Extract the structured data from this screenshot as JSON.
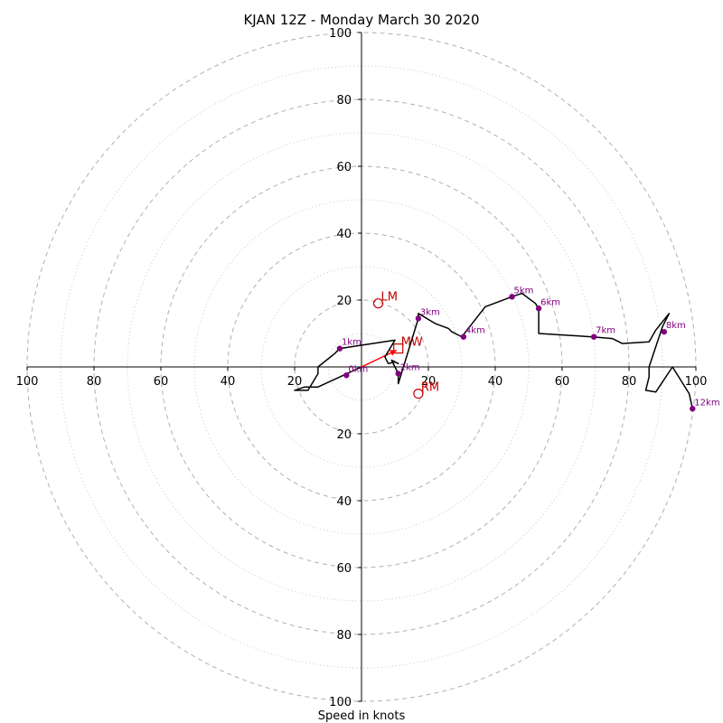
{
  "chart_data": {
    "type": "hodograph",
    "title": "KJAN 12Z - Monday March 30 2020",
    "xlabel": "Speed in knots",
    "range": [
      -100,
      100
    ],
    "major_rings": [
      20,
      40,
      60,
      80,
      100
    ],
    "minor_rings": [
      10,
      30,
      50,
      70,
      90
    ],
    "x_tick_labels": [
      "100",
      "80",
      "60",
      "40",
      "20",
      "20",
      "40",
      "60",
      "80",
      "100"
    ],
    "x_tick_values": [
      -100,
      -80,
      -60,
      -40,
      -20,
      20,
      40,
      60,
      80,
      100
    ],
    "y_tick_labels": [
      "100",
      "80",
      "60",
      "40",
      "20",
      "20",
      "40",
      "60",
      "80",
      "100"
    ],
    "y_tick_values": [
      100,
      80,
      60,
      40,
      20,
      -20,
      -40,
      -60,
      -80,
      -100
    ],
    "colors": {
      "ring": "#b0b0b0",
      "trace": "#000000",
      "height_marker": "#800080",
      "motion": "#c00000",
      "shear_vector": "#ff0000",
      "axis": "#000000"
    },
    "hodograph_trace": [
      [
        0,
        0
      ],
      [
        -13,
        -6
      ],
      [
        -17,
        -6
      ],
      [
        -20,
        -7
      ],
      [
        -16,
        -7
      ],
      [
        -13,
        -2
      ],
      [
        -13,
        0
      ],
      [
        -8,
        4
      ],
      [
        -6.5,
        5.5
      ],
      [
        10,
        8
      ],
      [
        7,
        3
      ],
      [
        8,
        1
      ],
      [
        10,
        1.5
      ],
      [
        11,
        1
      ],
      [
        9,
        2
      ],
      [
        10,
        0
      ],
      [
        11,
        -2
      ],
      [
        11,
        -5
      ],
      [
        17,
        14.5
      ],
      [
        17,
        16
      ],
      [
        22,
        13
      ],
      [
        26,
        11.5
      ],
      [
        27,
        10.5
      ],
      [
        30,
        9
      ],
      [
        37,
        18
      ],
      [
        45,
        21
      ],
      [
        48,
        22
      ],
      [
        52,
        19
      ],
      [
        53,
        17.5
      ],
      [
        53,
        10
      ],
      [
        69,
        9
      ],
      [
        75,
        8.5
      ],
      [
        78,
        7
      ],
      [
        86,
        7.5
      ],
      [
        88,
        11
      ],
      [
        92,
        16
      ],
      [
        90,
        12
      ],
      [
        86,
        0
      ],
      [
        86,
        -3
      ],
      [
        85,
        -7
      ],
      [
        88,
        -7.5
      ],
      [
        93,
        0
      ],
      [
        98,
        -8
      ],
      [
        99,
        -12.5
      ]
    ],
    "height_markers": [
      {
        "label": "0km",
        "u": -4.5,
        "v": -2.5
      },
      {
        "label": "1km",
        "u": -6.5,
        "v": 5.5
      },
      {
        "label": "2km",
        "u": 11,
        "v": -2
      },
      {
        "label": "3km",
        "u": 17,
        "v": 14.5
      },
      {
        "label": "4km",
        "u": 30.5,
        "v": 9
      },
      {
        "label": "5km",
        "u": 45,
        "v": 21
      },
      {
        "label": "6km",
        "u": 53,
        "v": 17.5
      },
      {
        "label": "7km",
        "u": 69.5,
        "v": 9
      },
      {
        "label": "8km",
        "u": 90.5,
        "v": 10.5
      },
      {
        "label": "12km",
        "u": 99,
        "v": -12.5
      }
    ],
    "storm_motions": [
      {
        "label": "LM",
        "u": 5,
        "v": 19
      },
      {
        "label": "MW",
        "u": 11,
        "v": 5.5
      },
      {
        "label": "RM",
        "u": 17,
        "v": -8
      }
    ],
    "shear_vector": {
      "from": [
        0,
        0
      ],
      "to": [
        10.5,
        5
      ]
    }
  }
}
